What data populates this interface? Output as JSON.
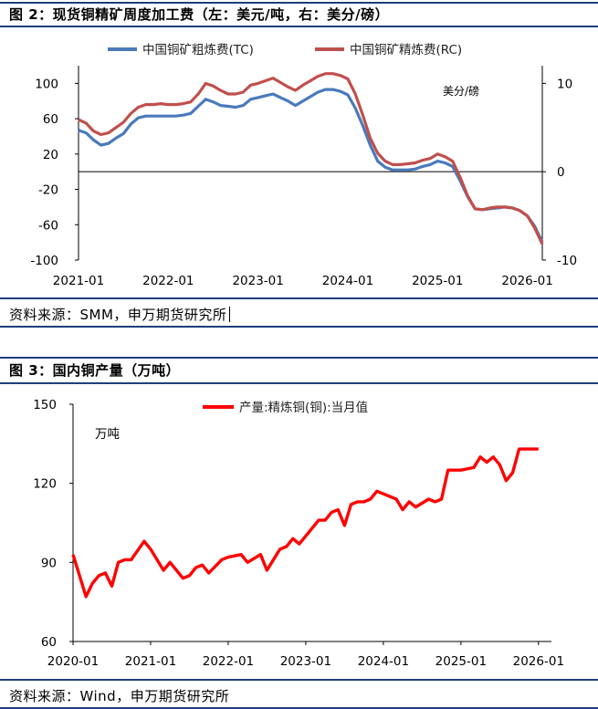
{
  "figure2": {
    "title": "图 2：现货铜精矿周度加工费（左：美元/吨，右：美分/磅）",
    "source": "资料来源：SMM，申万期货研究所",
    "chart_data": {
      "type": "line",
      "unit_right": "美分/磅",
      "x_ticks": [
        "2021-01",
        "2022-01",
        "2023-01",
        "2024-01",
        "2025-01",
        "2026-01"
      ],
      "y_left_ticks": [
        "100",
        "60",
        "20",
        "-20",
        "-60",
        "-100"
      ],
      "y_right_ticks": [
        "10",
        "0",
        "-10"
      ],
      "y_left_range": [
        -100,
        120
      ],
      "y_right_range": [
        -10,
        12
      ],
      "legend_position": "top",
      "grid": false,
      "series": [
        {
          "name": "中国铜矿粗炼费(TC)",
          "axis": "left",
          "color": "#4a7abc",
          "points": [
            [
              "2021-01",
              47
            ],
            [
              "2021-02",
              44
            ],
            [
              "2021-03",
              36
            ],
            [
              "2021-04",
              30
            ],
            [
              "2021-05",
              32
            ],
            [
              "2021-06",
              38
            ],
            [
              "2021-07",
              43
            ],
            [
              "2021-08",
              54
            ],
            [
              "2021-09",
              61
            ],
            [
              "2021-10",
              63
            ],
            [
              "2021-11",
              63
            ],
            [
              "2021-12",
              63
            ],
            [
              "2022-01",
              63
            ],
            [
              "2022-02",
              63
            ],
            [
              "2022-03",
              64
            ],
            [
              "2022-04",
              66
            ],
            [
              "2022-05",
              74
            ],
            [
              "2022-06",
              82
            ],
            [
              "2022-07",
              79
            ],
            [
              "2022-08",
              75
            ],
            [
              "2022-09",
              74
            ],
            [
              "2022-10",
              73
            ],
            [
              "2022-11",
              75
            ],
            [
              "2022-12",
              82
            ],
            [
              "2023-01",
              84
            ],
            [
              "2023-02",
              86
            ],
            [
              "2023-03",
              88
            ],
            [
              "2023-04",
              84
            ],
            [
              "2023-05",
              80
            ],
            [
              "2023-06",
              75
            ],
            [
              "2023-07",
              80
            ],
            [
              "2023-08",
              85
            ],
            [
              "2023-09",
              90
            ],
            [
              "2023-10",
              93
            ],
            [
              "2023-11",
              93
            ],
            [
              "2023-12",
              91
            ],
            [
              "2024-01",
              87
            ],
            [
              "2024-02",
              72
            ],
            [
              "2024-03",
              52
            ],
            [
              "2024-04",
              30
            ],
            [
              "2024-05",
              12
            ],
            [
              "2024-06",
              5
            ],
            [
              "2024-07",
              2
            ],
            [
              "2024-08",
              2
            ],
            [
              "2024-09",
              2
            ],
            [
              "2024-10",
              3
            ],
            [
              "2024-11",
              6
            ],
            [
              "2024-12",
              8
            ],
            [
              "2025-01",
              12
            ],
            [
              "2025-02",
              10
            ],
            [
              "2025-03",
              6
            ],
            [
              "2025-04",
              -10
            ],
            [
              "2025-05",
              -28
            ],
            [
              "2025-06",
              -42
            ],
            [
              "2025-07",
              -43
            ],
            [
              "2025-08",
              -42
            ],
            [
              "2025-09",
              -41
            ],
            [
              "2025-10",
              -40
            ],
            [
              "2025-11",
              -41
            ],
            [
              "2025-12",
              -44
            ],
            [
              "2026-01",
              -50
            ],
            [
              "2026-02",
              -62
            ],
            [
              "2026-03",
              -80
            ]
          ]
        },
        {
          "name": "中国铜矿精炼费(RC)",
          "axis": "right",
          "color": "#c0504d",
          "points": [
            [
              "2021-01",
              5.9
            ],
            [
              "2021-02",
              5.5
            ],
            [
              "2021-03",
              4.6
            ],
            [
              "2021-04",
              4.2
            ],
            [
              "2021-05",
              4.4
            ],
            [
              "2021-06",
              5.0
            ],
            [
              "2021-07",
              5.6
            ],
            [
              "2021-08",
              6.6
            ],
            [
              "2021-09",
              7.3
            ],
            [
              "2021-10",
              7.6
            ],
            [
              "2021-11",
              7.6
            ],
            [
              "2021-12",
              7.7
            ],
            [
              "2022-01",
              7.6
            ],
            [
              "2022-02",
              7.6
            ],
            [
              "2022-03",
              7.7
            ],
            [
              "2022-04",
              7.9
            ],
            [
              "2022-05",
              8.8
            ],
            [
              "2022-06",
              10.0
            ],
            [
              "2022-07",
              9.7
            ],
            [
              "2022-08",
              9.2
            ],
            [
              "2022-09",
              8.8
            ],
            [
              "2022-10",
              8.8
            ],
            [
              "2022-11",
              9.0
            ],
            [
              "2022-12",
              9.8
            ],
            [
              "2023-01",
              10.0
            ],
            [
              "2023-02",
              10.3
            ],
            [
              "2023-03",
              10.6
            ],
            [
              "2023-04",
              10.1
            ],
            [
              "2023-05",
              9.6
            ],
            [
              "2023-06",
              9.2
            ],
            [
              "2023-07",
              9.8
            ],
            [
              "2023-08",
              10.3
            ],
            [
              "2023-09",
              10.8
            ],
            [
              "2023-10",
              11.1
            ],
            [
              "2023-11",
              11.1
            ],
            [
              "2023-12",
              10.9
            ],
            [
              "2024-01",
              10.5
            ],
            [
              "2024-02",
              8.8
            ],
            [
              "2024-03",
              6.4
            ],
            [
              "2024-04",
              3.8
            ],
            [
              "2024-05",
              2.1
            ],
            [
              "2024-06",
              1.2
            ],
            [
              "2024-07",
              0.8
            ],
            [
              "2024-08",
              0.8
            ],
            [
              "2024-09",
              0.9
            ],
            [
              "2024-10",
              1.0
            ],
            [
              "2024-11",
              1.3
            ],
            [
              "2024-12",
              1.5
            ],
            [
              "2025-01",
              2.0
            ],
            [
              "2025-02",
              1.7
            ],
            [
              "2025-03",
              1.2
            ],
            [
              "2025-04",
              -0.6
            ],
            [
              "2025-05",
              -2.7
            ],
            [
              "2025-06",
              -4.2
            ],
            [
              "2025-07",
              -4.3
            ],
            [
              "2025-08",
              -4.1
            ],
            [
              "2025-09",
              -4.0
            ],
            [
              "2025-10",
              -4.0
            ],
            [
              "2025-11",
              -4.1
            ],
            [
              "2025-12",
              -4.4
            ],
            [
              "2026-01",
              -5.0
            ],
            [
              "2026-02",
              -6.4
            ],
            [
              "2026-03",
              -8.2
            ]
          ]
        }
      ]
    }
  },
  "figure3": {
    "title": "图 3：国内铜产量（万吨）",
    "source": "资料来源：Wind，申万期货研究所",
    "chart_data": {
      "type": "line",
      "unit": "万吨",
      "x_ticks": [
        "2020-01",
        "2021-01",
        "2022-01",
        "2023-01",
        "2024-01",
        "2025-01",
        "2026-01"
      ],
      "y_ticks": [
        "150",
        "120",
        "90",
        "60"
      ],
      "ylim": [
        60,
        150
      ],
      "legend_position": "top",
      "grid": false,
      "series": [
        {
          "name": "产量:精炼铜(铜):当月值",
          "color": "#ff0000",
          "points": [
            [
              "2020-01",
              93
            ],
            [
              "2020-03",
              77
            ],
            [
              "2020-04",
              82
            ],
            [
              "2020-05",
              85
            ],
            [
              "2020-06",
              86
            ],
            [
              "2020-07",
              81
            ],
            [
              "2020-08",
              90
            ],
            [
              "2020-09",
              91
            ],
            [
              "2020-10",
              91
            ],
            [
              "2020-12",
              98
            ],
            [
              "2021-01",
              95
            ],
            [
              "2021-03",
              87
            ],
            [
              "2021-04",
              90
            ],
            [
              "2021-05",
              87
            ],
            [
              "2021-06",
              84
            ],
            [
              "2021-07",
              85
            ],
            [
              "2021-08",
              88
            ],
            [
              "2021-09",
              89
            ],
            [
              "2021-10",
              86
            ],
            [
              "2021-12",
              91
            ],
            [
              "2022-01",
              92
            ],
            [
              "2022-03",
              93
            ],
            [
              "2022-04",
              90
            ],
            [
              "2022-06",
              93
            ],
            [
              "2022-07",
              87
            ],
            [
              "2022-08",
              91
            ],
            [
              "2022-09",
              95
            ],
            [
              "2022-10",
              96
            ],
            [
              "2022-11",
              99
            ],
            [
              "2022-12",
              97
            ],
            [
              "2023-01",
              100
            ],
            [
              "2023-03",
              106
            ],
            [
              "2023-04",
              106
            ],
            [
              "2023-05",
              109
            ],
            [
              "2023-06",
              110
            ],
            [
              "2023-07",
              104
            ],
            [
              "2023-08",
              112
            ],
            [
              "2023-09",
              113
            ],
            [
              "2023-10",
              113
            ],
            [
              "2023-11",
              114
            ],
            [
              "2023-12",
              117
            ],
            [
              "2024-01",
              116
            ],
            [
              "2024-03",
              114
            ],
            [
              "2024-04",
              110
            ],
            [
              "2024-05",
              113
            ],
            [
              "2024-06",
              111
            ],
            [
              "2024-08",
              114
            ],
            [
              "2024-09",
              113
            ],
            [
              "2024-10",
              114
            ],
            [
              "2024-11",
              125
            ],
            [
              "2025-01",
              125
            ],
            [
              "2025-03",
              126
            ],
            [
              "2025-04",
              130
            ],
            [
              "2025-05",
              128
            ],
            [
              "2025-06",
              130
            ],
            [
              "2025-07",
              127
            ],
            [
              "2025-08",
              121
            ],
            [
              "2025-09",
              124
            ],
            [
              "2025-10",
              133
            ],
            [
              "2025-12",
              133
            ],
            [
              "2026-01",
              133
            ]
          ]
        }
      ]
    }
  }
}
